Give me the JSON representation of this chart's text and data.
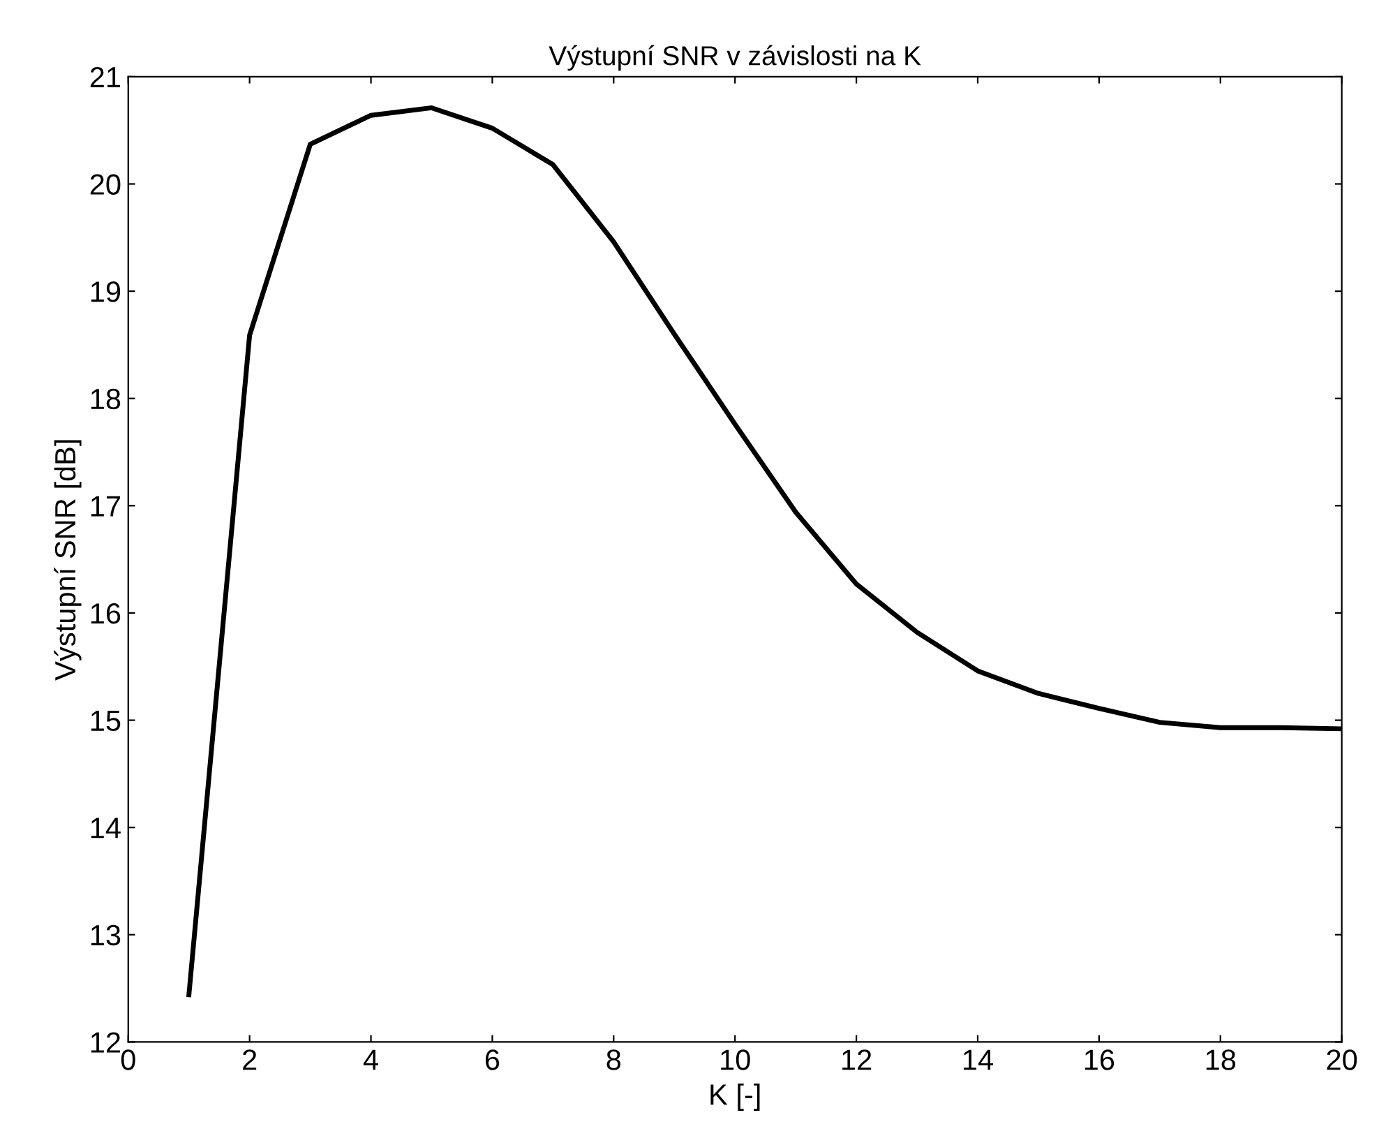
{
  "chart_data": {
    "type": "line",
    "title": "Výstupní SNR v závislosti na K",
    "xlabel": "K [-]",
    "ylabel": "Výstupní SNR [dB]",
    "x": [
      1,
      2,
      3,
      4,
      5,
      6,
      7,
      8,
      9,
      10,
      11,
      12,
      13,
      14,
      15,
      16,
      17,
      18,
      19,
      20
    ],
    "series": [
      {
        "color": "#000000",
        "values": [
          12.44,
          18.59,
          20.37,
          20.64,
          20.71,
          20.52,
          20.18,
          19.46,
          18.6,
          17.76,
          16.94,
          16.27,
          15.82,
          15.46,
          15.25,
          15.11,
          14.98,
          14.93,
          14.93,
          14.92
        ]
      }
    ],
    "xlim": [
      0,
      20
    ],
    "ylim": [
      12,
      21
    ],
    "xticks": [
      0,
      2,
      4,
      6,
      8,
      10,
      12,
      14,
      16,
      18,
      20
    ],
    "yticks": [
      12,
      13,
      14,
      15,
      16,
      17,
      18,
      19,
      20,
      21
    ],
    "grid": false,
    "legend": false,
    "marker": "none",
    "line_style": "solid"
  }
}
